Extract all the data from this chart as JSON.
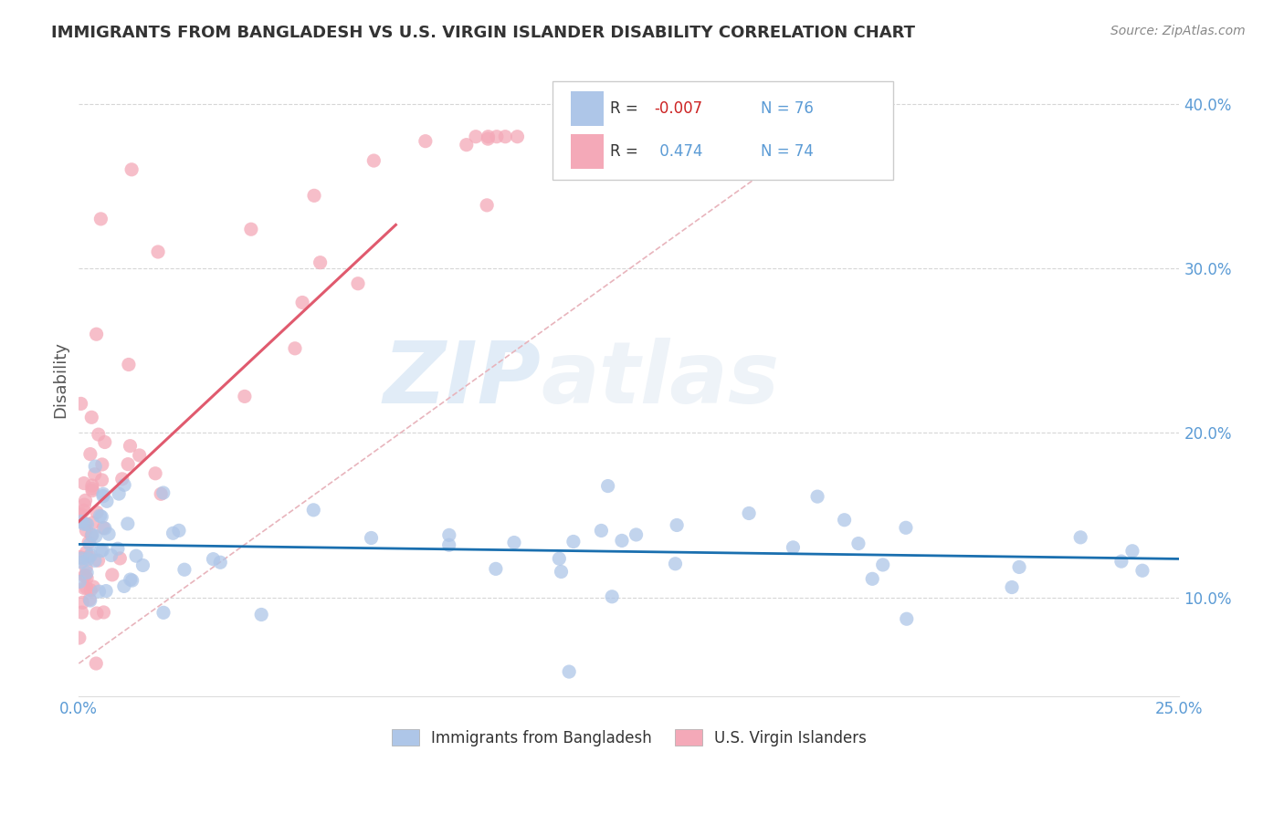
{
  "title": "IMMIGRANTS FROM BANGLADESH VS U.S. VIRGIN ISLANDER DISABILITY CORRELATION CHART",
  "source": "Source: ZipAtlas.com",
  "ylabel": "Disability",
  "xmin": 0.0,
  "xmax": 0.25,
  "ymin": 0.04,
  "ymax": 0.425,
  "yticks": [
    0.1,
    0.2,
    0.3,
    0.4
  ],
  "ytick_labels": [
    "10.0%",
    "20.0%",
    "30.0%",
    "40.0%"
  ],
  "R1": -0.007,
  "N1": 76,
  "R2": 0.474,
  "N2": 74,
  "color_blue": "#aec6e8",
  "color_pink": "#f4a9b8",
  "color_blue_line": "#1a6faf",
  "color_pink_line": "#e05a6e",
  "color_diag": "#e8b4bc",
  "watermark_zip": "ZIP",
  "watermark_atlas": "atlas",
  "legend_label1": "Immigrants from Bangladesh",
  "legend_label2": "U.S. Virgin Islanders"
}
